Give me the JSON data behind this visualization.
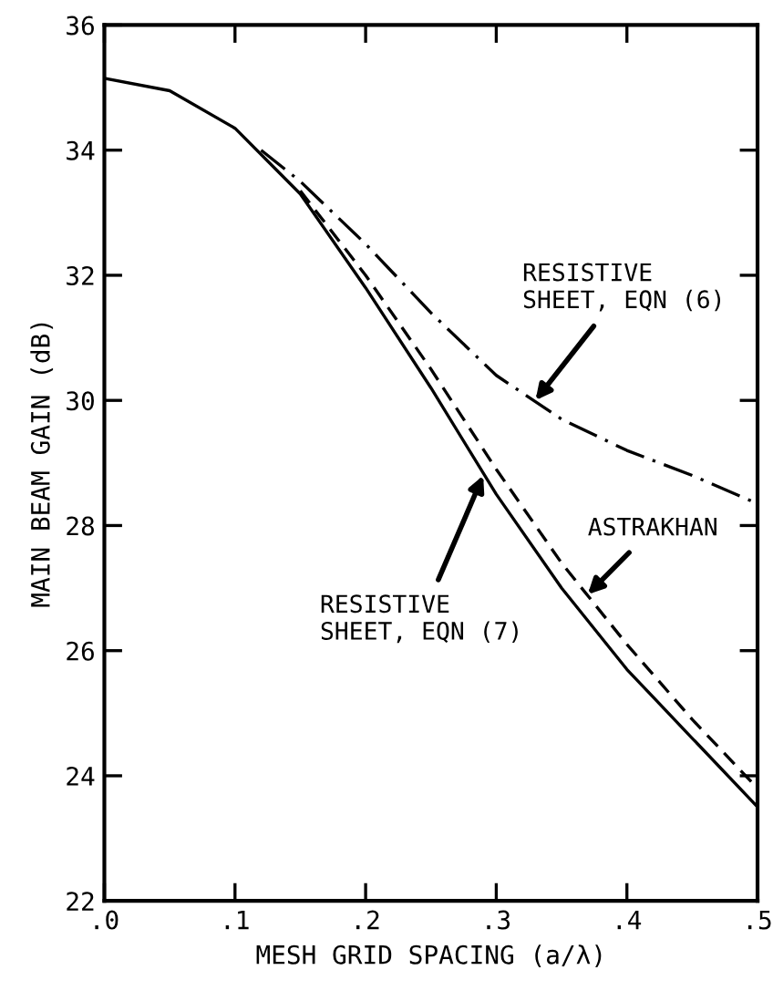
{
  "chart_data": {
    "type": "line",
    "xlabel": "MESH GRID SPACING (a/λ)",
    "ylabel": "MAIN BEAM GAIN (dB)",
    "xlim": [
      0,
      0.5
    ],
    "ylim": [
      22,
      36
    ],
    "xticks": [
      {
        "value": 0,
        "label": ".0"
      },
      {
        "value": 0.1,
        "label": ".1"
      },
      {
        "value": 0.2,
        "label": ".2"
      },
      {
        "value": 0.3,
        "label": ".3"
      },
      {
        "value": 0.4,
        "label": ".4"
      },
      {
        "value": 0.5,
        "label": ".5"
      }
    ],
    "yticks": [
      22,
      24,
      26,
      28,
      30,
      32,
      34,
      36
    ],
    "grid": false,
    "legend": false,
    "marker": "none",
    "series": [
      {
        "color": "#000000",
        "line_style": "solid",
        "x": [
          0,
          0.05,
          0.1,
          0.15,
          0.2,
          0.25,
          0.3,
          0.35,
          0.4,
          0.45,
          0.5
        ],
        "values": [
          35.15,
          34.95,
          34.35,
          33.3,
          31.8,
          30.2,
          28.5,
          27.0,
          25.7,
          24.6,
          23.5
        ]
      },
      {
        "color": "#000000",
        "line_style": "dashed",
        "x": [
          0.15,
          0.2,
          0.25,
          0.3,
          0.35,
          0.4,
          0.45,
          0.5
        ],
        "values": [
          33.35,
          32.0,
          30.5,
          28.9,
          27.4,
          26.1,
          24.9,
          23.8
        ]
      },
      {
        "color": "#000000",
        "line_style": "dashdot",
        "x": [
          0.12,
          0.15,
          0.2,
          0.25,
          0.3,
          0.35,
          0.4,
          0.45,
          0.5
        ],
        "values": [
          34.0,
          33.5,
          32.5,
          31.4,
          30.4,
          29.7,
          29.2,
          28.8,
          28.35
        ]
      }
    ],
    "annotations": [
      {
        "text": "RESISTIVE\nSHEET, EQN (6)",
        "x": 0.33,
        "y": 30.0
      },
      {
        "text": "ASTRAKHAN",
        "x": 0.37,
        "y": 26.9
      },
      {
        "text": "RESISTIVE\nSHEET, EQN (7)",
        "x": 0.29,
        "y": 28.8
      }
    ]
  }
}
